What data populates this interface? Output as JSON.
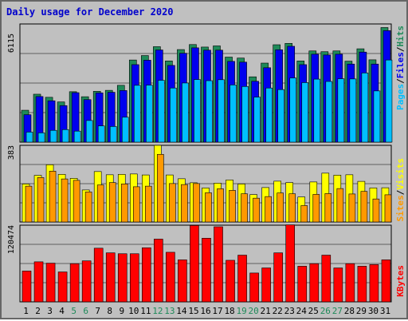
{
  "title": "Daily usage for December 2020",
  "colors": {
    "hits": "#1e8a59",
    "files": "#0000ee",
    "pages": "#00bfff",
    "visits": "#ffff00",
    "sites": "#ff9900",
    "kbytes": "#ff0000",
    "weekend_label": "#1e8a59",
    "weekday_label": "#000000"
  },
  "legend": {
    "pages": "Pages",
    "files": "Files",
    "hits": "Hits",
    "sites": "Sites",
    "visits": "Visits",
    "kbytes": "KBytes",
    "sep": "/"
  },
  "chart_data": [
    {
      "type": "bar",
      "title": "Daily usage for December 2020",
      "ymax_label": "6115",
      "ylim": [
        0,
        6115
      ],
      "categories": [
        "1",
        "2",
        "3",
        "4",
        "5",
        "6",
        "7",
        "8",
        "9",
        "10",
        "11",
        "12",
        "13",
        "14",
        "15",
        "16",
        "17",
        "18",
        "19",
        "20",
        "21",
        "22",
        "23",
        "24",
        "25",
        "26",
        "27",
        "28",
        "29",
        "30",
        "31"
      ],
      "weekend_days": [
        "5",
        "6",
        "12",
        "13",
        "19",
        "20",
        "26",
        "27"
      ],
      "series": [
        {
          "name": "Hits",
          "values": [
            1650,
            2480,
            2320,
            2080,
            2610,
            2350,
            2630,
            2680,
            2940,
            4250,
            4480,
            4940,
            4200,
            4790,
            5050,
            4920,
            4980,
            4400,
            4350,
            3380,
            4090,
            5040,
            5110,
            4200,
            4720,
            4680,
            4720,
            4190,
            4830,
            4260,
            5930
          ]
        },
        {
          "name": "Files",
          "values": [
            1420,
            2360,
            2140,
            1890,
            2560,
            2200,
            2550,
            2580,
            2670,
            4010,
            4240,
            4770,
            3970,
            4600,
            4880,
            4760,
            4760,
            4180,
            4140,
            3150,
            3850,
            4780,
            4960,
            4010,
            4550,
            4510,
            4550,
            4040,
            4660,
            4040,
            5770
          ]
        },
        {
          "name": "Pages",
          "values": [
            520,
            480,
            610,
            650,
            570,
            1120,
            840,
            810,
            1290,
            2940,
            2950,
            3200,
            2800,
            3060,
            3240,
            3180,
            3230,
            2960,
            2880,
            2330,
            2800,
            2720,
            3320,
            3080,
            3260,
            3140,
            3280,
            3270,
            3580,
            2650,
            4250
          ]
        }
      ]
    },
    {
      "type": "bar",
      "ymax_label": "383",
      "ylim": [
        0,
        383
      ],
      "categories": [
        "1",
        "2",
        "3",
        "4",
        "5",
        "6",
        "7",
        "8",
        "9",
        "10",
        "11",
        "12",
        "13",
        "14",
        "15",
        "16",
        "17",
        "18",
        "19",
        "20",
        "21",
        "22",
        "23",
        "24",
        "25",
        "26",
        "27",
        "28",
        "29",
        "30",
        "31"
      ],
      "series": [
        {
          "name": "Visits",
          "values": [
            190,
            233,
            286,
            238,
            218,
            160,
            252,
            236,
            238,
            240,
            235,
            383,
            235,
            216,
            196,
            170,
            194,
            210,
            190,
            137,
            172,
            204,
            197,
            125,
            200,
            244,
            234,
            236,
            203,
            170,
            171
          ]
        },
        {
          "name": "Sites",
          "values": [
            179,
            222,
            254,
            215,
            208,
            150,
            185,
            197,
            190,
            176,
            179,
            338,
            192,
            187,
            192,
            146,
            166,
            158,
            141,
            119,
            127,
            145,
            141,
            82,
            138,
            142,
            167,
            140,
            153,
            115,
            136
          ]
        }
      ]
    },
    {
      "type": "bar",
      "ymax_label": "120474",
      "ylim": [
        0,
        120474
      ],
      "categories": [
        "1",
        "2",
        "3",
        "4",
        "5",
        "6",
        "7",
        "8",
        "9",
        "10",
        "11",
        "12",
        "13",
        "14",
        "15",
        "16",
        "17",
        "18",
        "19",
        "20",
        "21",
        "22",
        "23",
        "24",
        "25",
        "26",
        "27",
        "28",
        "29",
        "30",
        "31"
      ],
      "series": [
        {
          "name": "KBytes",
          "values": [
            48400,
            62900,
            60800,
            47000,
            60000,
            64400,
            84300,
            77000,
            75600,
            75600,
            85000,
            98600,
            77900,
            66000,
            120000,
            100000,
            118000,
            65300,
            73400,
            45300,
            53300,
            77000,
            121000,
            56000,
            60000,
            73400,
            53300,
            60000,
            56000,
            58600,
            66000
          ]
        }
      ]
    }
  ]
}
